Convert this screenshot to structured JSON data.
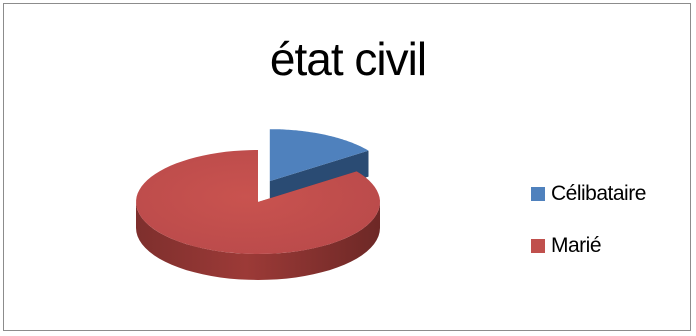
{
  "chart_data": {
    "type": "pie",
    "title": "état civil",
    "categories": [
      "Célibataire",
      "Marié"
    ],
    "values": [
      15,
      85
    ],
    "colors": [
      "#4f81bd",
      "#c0504d"
    ],
    "legend_position": "right",
    "exploded": [
      "Célibataire"
    ],
    "style": "3d"
  }
}
